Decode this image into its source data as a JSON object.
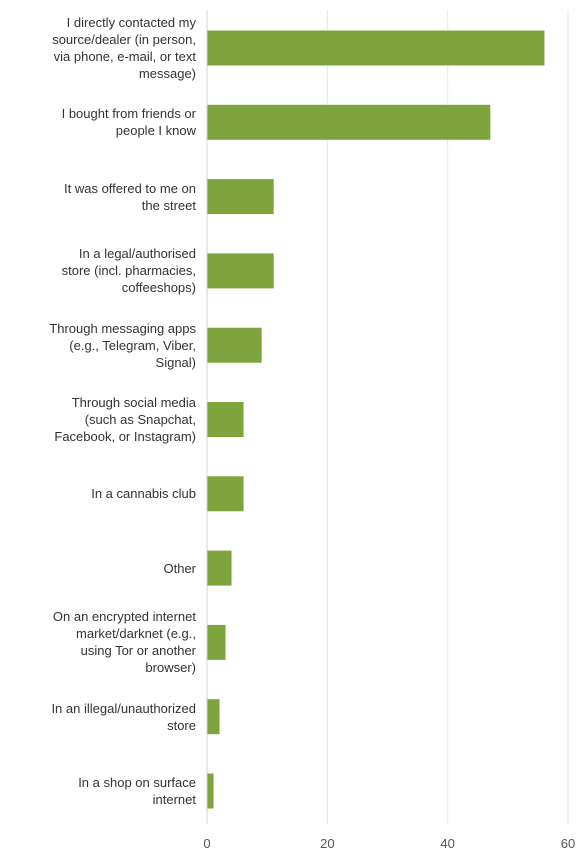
{
  "chart_data": {
    "type": "bar",
    "orientation": "horizontal",
    "categories": [
      "I directly contacted my source/dealer (in person, via phone, e-mail, or text message)",
      "I bought from friends or people I know",
      "It was offered to me on the street",
      "In a legal/authorised store (incl. pharmacies, coffeeshops)",
      "Through messaging apps (e.g., Telegram, Viber, Signal)",
      "Through social media (such as Snapchat, Facebook, or Instagram)",
      "In a cannabis club",
      "Other",
      "On an encrypted internet market/darknet (e.g., using Tor or another browser)",
      "In an illegal/unauthorized store",
      "In a shop on surface internet"
    ],
    "category_lines": [
      [
        "I directly contacted my",
        "source/dealer (in person,",
        "via phone, e-mail, or text",
        "message)"
      ],
      [
        "I bought from friends or",
        "people I know"
      ],
      [
        "It was offered to me on",
        "the street"
      ],
      [
        "In a legal/authorised",
        "store (incl. pharmacies,",
        "coffeeshops)"
      ],
      [
        "Through messaging apps",
        "(e.g., Telegram, Viber,",
        "Signal)"
      ],
      [
        "Through social media",
        "(such as Snapchat,",
        "Facebook, or Instagram)"
      ],
      [
        "In a cannabis club"
      ],
      [
        "Other"
      ],
      [
        "On an encrypted internet",
        "market/darknet (e.g.,",
        "using Tor or another",
        "browser)"
      ],
      [
        "In an illegal/unauthorized",
        "store"
      ],
      [
        "In a shop on surface",
        "internet"
      ]
    ],
    "values": [
      56,
      47,
      11,
      11,
      9,
      6,
      6,
      4,
      3,
      2,
      1
    ],
    "xlim": [
      0,
      60
    ],
    "xticks": [
      0,
      20,
      40,
      60
    ],
    "grid": true,
    "bar_color": "#7ea53d",
    "grid_color": "#e3e7ee",
    "axis_color": "#c9d3e6"
  }
}
